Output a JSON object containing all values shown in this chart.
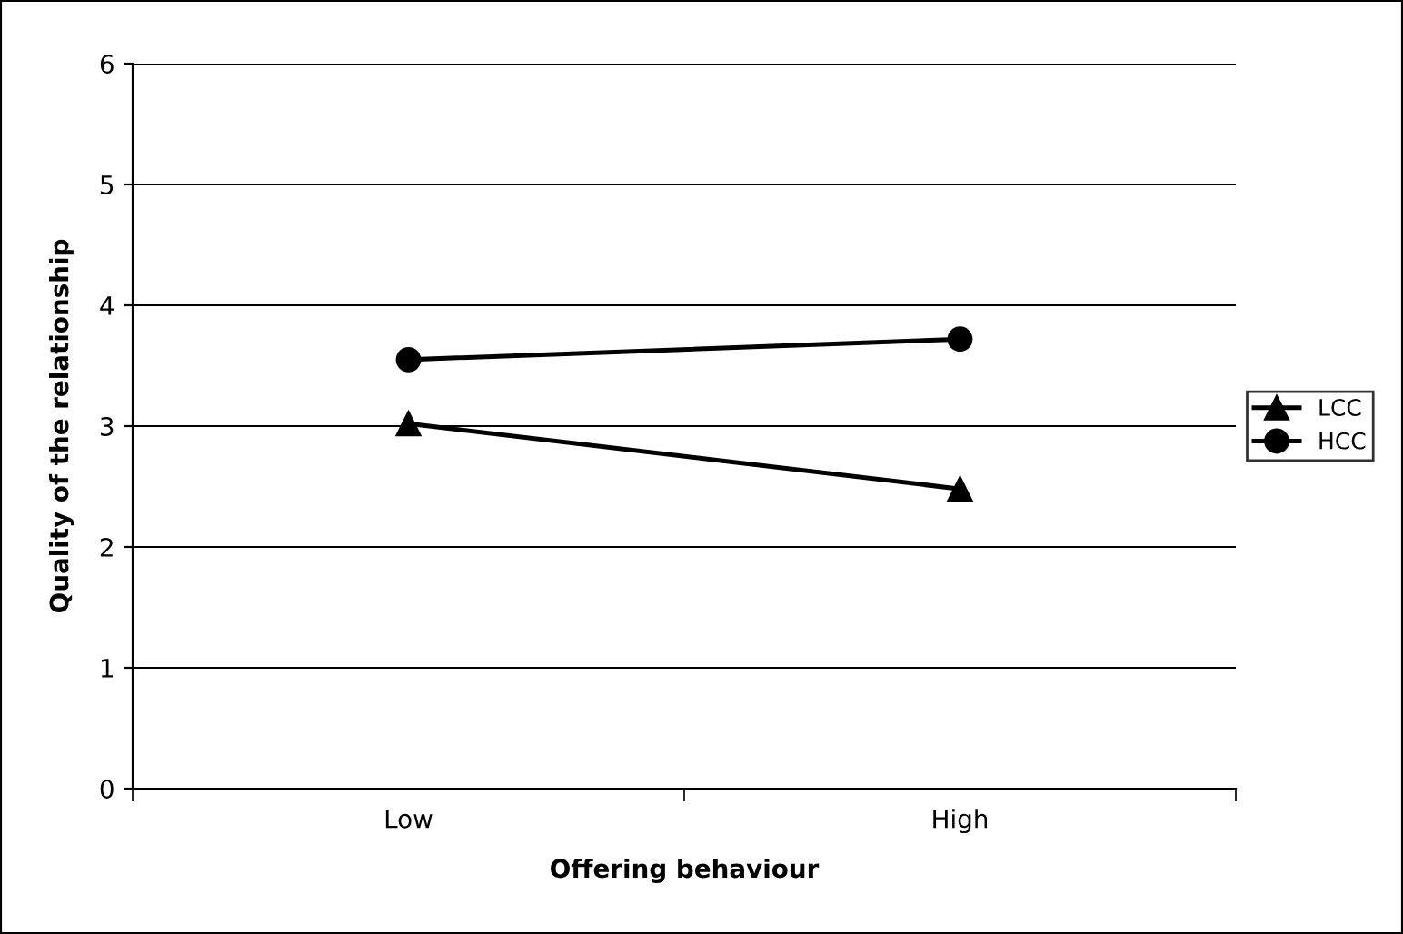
{
  "chart_data": {
    "type": "line",
    "xlabel": "Offering behaviour",
    "ylabel": "Quality of the relationship",
    "categories": [
      "Low",
      "High"
    ],
    "series": [
      {
        "name": "LCC",
        "color": "#000000",
        "values": [
          3.02,
          2.48
        ],
        "marker": "triangle"
      },
      {
        "name": "HCC",
        "color": "#000000",
        "values": [
          3.55,
          3.72
        ],
        "marker": "circle"
      }
    ],
    "ylim": [
      0,
      6
    ],
    "yticks": [
      0,
      1,
      2,
      3,
      4,
      5,
      6
    ],
    "grid": "y",
    "legend": "right",
    "line_style": "solid"
  }
}
